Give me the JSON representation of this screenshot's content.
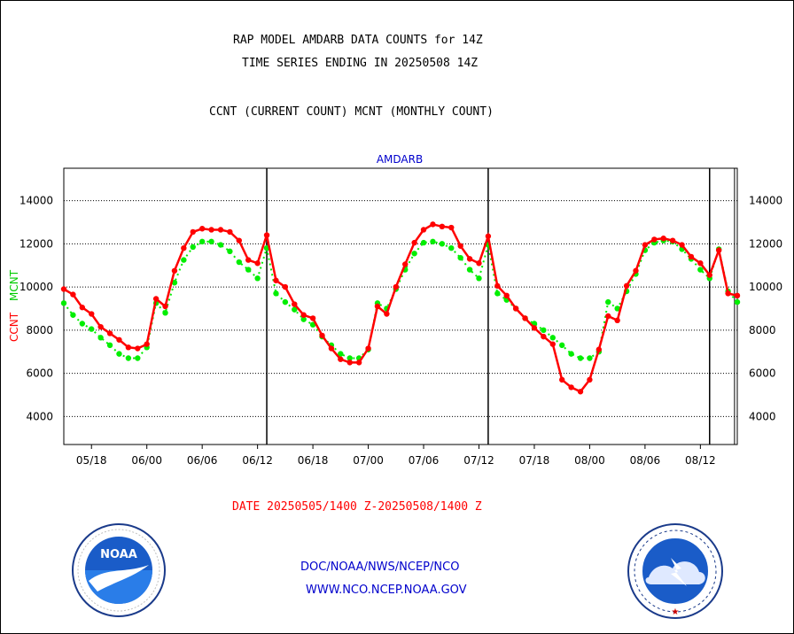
{
  "header": {
    "title_line1": "RAP MODEL AMDARB DATA COUNTS for 14Z",
    "title_line2": "TIME SERIES ENDING IN 20250508 14Z",
    "legend_line": "CCNT (CURRENT COUNT) MCNT (MONTHLY COUNT)"
  },
  "footer": {
    "date_range": "DATE 20250505/1400 Z-20250508/1400 Z",
    "org_line": "DOC/NOAA/NWS/NCEP/NCO",
    "url_line": "WWW.NCO.NCEP.NOAA.GOV"
  },
  "logos": {
    "left": {
      "text": "NOAA",
      "ring_text": "NATIONAL OCEANIC AND ATMOSPHERIC ADMINISTRATION · U.S. DEPARTMENT OF COMMERCE"
    },
    "right": {
      "ring_text": "NATIONAL WEATHER SERVICE"
    }
  },
  "chart_data": {
    "type": "line",
    "title": "AMDARB",
    "ylabel_left_ccnt": "CCNT",
    "ylabel_left_mcnt": "MCNT",
    "ylim": [
      2700,
      15500
    ],
    "yticks": [
      4000,
      6000,
      8000,
      10000,
      12000,
      14000
    ],
    "x_tick_labels": [
      "05/18",
      "06/00",
      "06/06",
      "06/12",
      "06/18",
      "07/00",
      "07/06",
      "07/12",
      "07/18",
      "08/00",
      "08/06",
      "08/12"
    ],
    "x_range_hours": [
      0,
      73
    ],
    "day_boundaries_hours": [
      22,
      46,
      70
    ],
    "grid": "horizontal dotted",
    "colors": {
      "ccnt": "#ff0000",
      "mcnt": "#00ee00",
      "axis_text": "#000000",
      "title": "#0000cc",
      "footer_date": "#ff0000",
      "footer_links": "#0000cc"
    },
    "series": [
      {
        "name": "CCNT",
        "x": [
          0,
          1,
          2,
          3,
          4,
          5,
          6,
          7,
          8,
          9,
          10,
          11,
          12,
          13,
          14,
          15,
          16,
          17,
          18,
          19,
          20,
          21,
          22,
          23,
          24,
          25,
          26,
          27,
          28,
          29,
          30,
          31,
          32,
          33,
          34,
          35,
          36,
          37,
          38,
          39,
          40,
          41,
          42,
          43,
          44,
          45,
          46,
          47,
          48,
          49,
          50,
          51,
          52,
          53,
          54,
          55,
          56,
          57,
          58,
          59,
          60,
          61,
          62,
          63,
          64,
          65,
          66,
          67,
          68,
          69,
          70,
          71,
          72,
          73
        ],
        "values": [
          9900,
          9650,
          9050,
          8750,
          8150,
          7850,
          7550,
          7200,
          7150,
          7350,
          9450,
          9100,
          10750,
          11800,
          12550,
          12700,
          12650,
          12650,
          12550,
          12150,
          11250,
          11100,
          12400,
          10300,
          10000,
          9200,
          8700,
          8550,
          7750,
          7150,
          6650,
          6500,
          6500,
          7150,
          9100,
          8750,
          10000,
          11050,
          12050,
          12650,
          12900,
          12800,
          12750,
          11900,
          11300,
          11100,
          12350,
          10050,
          9600,
          9000,
          8550,
          8100,
          7700,
          7350,
          5700,
          5350,
          5150,
          5700,
          7100,
          8650,
          8450,
          10050,
          10750,
          11950,
          12200,
          12250,
          12150,
          11950,
          11400,
          11100,
          10550,
          11700,
          9700,
          9600
        ]
      },
      {
        "name": "MCNT",
        "x": [
          0,
          1,
          2,
          3,
          4,
          5,
          6,
          7,
          8,
          9,
          10,
          11,
          12,
          13,
          14,
          15,
          16,
          17,
          18,
          19,
          20,
          21,
          22,
          23,
          24,
          25,
          26,
          27,
          28,
          29,
          30,
          31,
          32,
          33,
          34,
          35,
          36,
          37,
          38,
          39,
          40,
          41,
          42,
          43,
          44,
          45,
          46,
          47,
          48,
          49,
          50,
          51,
          52,
          53,
          54,
          55,
          56,
          57,
          58,
          59,
          60,
          61,
          62,
          63,
          64,
          65,
          66,
          67,
          68,
          69,
          70,
          71,
          72,
          73
        ],
        "values": [
          9250,
          8700,
          8300,
          8050,
          7650,
          7300,
          6900,
          6700,
          6700,
          7200,
          9250,
          8800,
          10200,
          11250,
          11850,
          12100,
          12100,
          11950,
          11650,
          11150,
          10800,
          10400,
          11800,
          9700,
          9300,
          8950,
          8500,
          8250,
          7700,
          7300,
          6900,
          6700,
          6700,
          7100,
          9250,
          9000,
          9900,
          10800,
          11550,
          12050,
          12100,
          12000,
          11800,
          11350,
          10800,
          10400,
          11950,
          9700,
          9400,
          9000,
          8550,
          8300,
          8000,
          7650,
          7300,
          6900,
          6700,
          6700,
          7000,
          9300,
          9000,
          9800,
          10600,
          11700,
          12050,
          12150,
          12100,
          11750,
          11300,
          10800,
          10400,
          11750,
          9800,
          9300
        ]
      }
    ]
  }
}
